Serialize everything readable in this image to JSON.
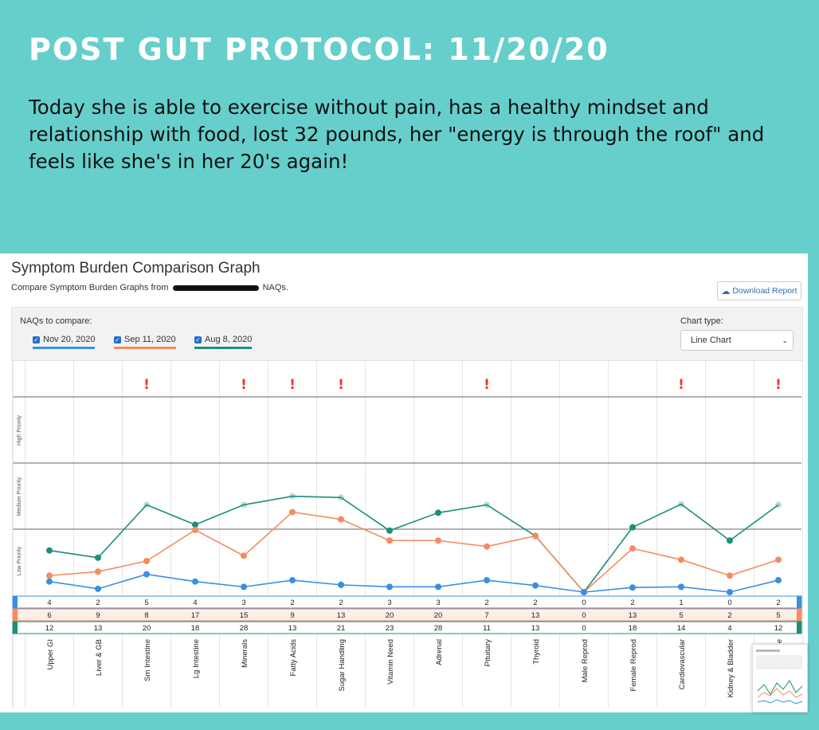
{
  "headline": "POST GUT PROTOCOL: 11/20/20",
  "story": "Today she is able to exercise without pain, has a healthy mindset and relationship with food, lost 32 pounds, her \"energy is through the roof\" and feels like she's in her 20's again!",
  "panel": {
    "title": "Symptom Burden Comparison Graph",
    "subtitle_prefix": "Compare Symptom Burden Graphs from",
    "subtitle_suffix": "NAQs.",
    "download_label": "Download Report",
    "compare_label": "NAQs to compare:",
    "chart_type_label": "Chart type:",
    "chart_type_value": "Line Chart",
    "naqs": [
      {
        "label": "Nov 20, 2020",
        "color": "#3b8fe0",
        "checked": true
      },
      {
        "label": "Sep 11, 2020",
        "color": "#f58b5f",
        "checked": true
      },
      {
        "label": "Aug 8, 2020",
        "color": "#1b8f7a",
        "checked": true
      }
    ]
  },
  "chart_data": {
    "type": "line",
    "categories": [
      "Upper GI",
      "Liver & GB",
      "Sm Intestine",
      "Lg Intestine",
      "Minerals",
      "Fatty Acids",
      "Sugar Handling",
      "Vitamin Need",
      "Adrenal",
      "Pituitary",
      "Thyroid",
      "Male Reprod",
      "Female Reprod",
      "Cardiovascular",
      "Kidney & Bladder",
      "Immune"
    ],
    "priority_bands": [
      "Low Priority",
      "Medium Priority",
      "High Priority"
    ],
    "series": [
      {
        "name": "Nov 20, 2020",
        "color": "#3b8fe0",
        "values": [
          4,
          2,
          5,
          4,
          3,
          2,
          2,
          3,
          3,
          2,
          2,
          0,
          2,
          1,
          0,
          2
        ],
        "level": [
          0.16,
          0.05,
          0.27,
          0.16,
          0.08,
          0.18,
          0.11,
          0.08,
          0.08,
          0.18,
          0.1,
          0.0,
          0.07,
          0.08,
          0.0,
          0.18
        ]
      },
      {
        "name": "Sep 11, 2020",
        "color": "#f58b5f",
        "values": [
          6,
          9,
          8,
          17,
          15,
          9,
          13,
          20,
          20,
          7,
          13,
          0,
          13,
          5,
          2,
          5
        ],
        "level": [
          0.25,
          0.31,
          0.47,
          0.94,
          0.55,
          1.21,
          1.1,
          0.78,
          0.78,
          0.69,
          0.85,
          0.0,
          0.66,
          0.49,
          0.25,
          0.49
        ]
      },
      {
        "name": "Aug 8, 2020",
        "color": "#1b8f7a",
        "values": [
          12,
          13,
          20,
          18,
          28,
          13,
          21,
          23,
          28,
          11,
          13,
          0,
          18,
          14,
          4,
          12
        ],
        "level": [
          0.63,
          0.52,
          1.32,
          1.02,
          1.32,
          1.45,
          1.43,
          0.93,
          1.2,
          1.32,
          0.85,
          0.0,
          0.98,
          1.33,
          0.78,
          1.32
        ]
      }
    ],
    "warnings": [
      false,
      false,
      true,
      false,
      true,
      true,
      true,
      false,
      false,
      true,
      false,
      false,
      false,
      true,
      false,
      true
    ]
  }
}
